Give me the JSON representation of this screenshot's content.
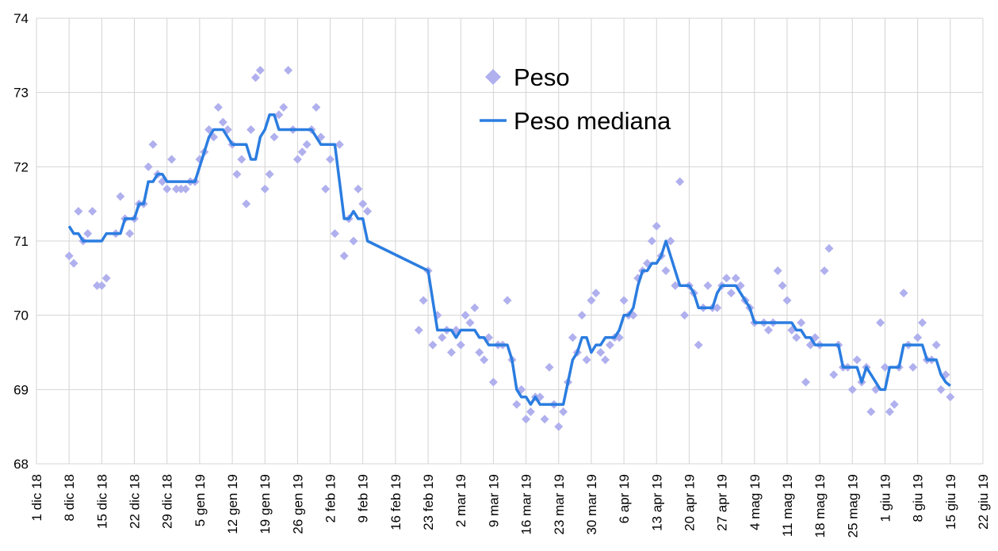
{
  "chart_data": {
    "type": "combo",
    "xlim": [
      0,
      203
    ],
    "ylim": [
      68,
      74
    ],
    "yticks": [
      68,
      69,
      70,
      71,
      72,
      73,
      74
    ],
    "xticks": [
      {
        "value": 0,
        "label": "1 dic 18"
      },
      {
        "value": 7,
        "label": "8 dic 18"
      },
      {
        "value": 14,
        "label": "15 dic 18"
      },
      {
        "value": 21,
        "label": "22 dic 18"
      },
      {
        "value": 28,
        "label": "29 dic 18"
      },
      {
        "value": 35,
        "label": "5 gen 19"
      },
      {
        "value": 42,
        "label": "12 gen 19"
      },
      {
        "value": 49,
        "label": "19 gen 19"
      },
      {
        "value": 56,
        "label": "26 gen 19"
      },
      {
        "value": 63,
        "label": "2 feb 19"
      },
      {
        "value": 70,
        "label": "9 feb 19"
      },
      {
        "value": 77,
        "label": "16 feb 19"
      },
      {
        "value": 84,
        "label": "23 feb 19"
      },
      {
        "value": 91,
        "label": "2 mar 19"
      },
      {
        "value": 98,
        "label": "9 mar 19"
      },
      {
        "value": 105,
        "label": "16 mar 19"
      },
      {
        "value": 112,
        "label": "23 mar 19"
      },
      {
        "value": 119,
        "label": "30 mar 19"
      },
      {
        "value": 126,
        "label": "6 apr 19"
      },
      {
        "value": 133,
        "label": "13 apr 19"
      },
      {
        "value": 140,
        "label": "20 apr 19"
      },
      {
        "value": 147,
        "label": "27 apr 19"
      },
      {
        "value": 154,
        "label": "4 mag 19"
      },
      {
        "value": 161,
        "label": "11 mag 19"
      },
      {
        "value": 168,
        "label": "18 mag 19"
      },
      {
        "value": 175,
        "label": "25 mag 19"
      },
      {
        "value": 182,
        "label": "1 giu 19"
      },
      {
        "value": 189,
        "label": "8 giu 19"
      },
      {
        "value": 196,
        "label": "15 giu 19"
      },
      {
        "value": 203,
        "label": "22 giu 19"
      }
    ],
    "grid": true,
    "legend": "top-center",
    "series": [
      {
        "name": "Peso",
        "type": "scatter",
        "color": "#b0b0ee",
        "x": [
          7,
          8,
          9,
          10,
          11,
          12,
          13,
          14,
          15,
          17,
          18,
          19,
          20,
          21,
          22,
          23,
          24,
          25,
          26,
          27,
          28,
          29,
          30,
          31,
          32,
          33,
          34,
          35,
          36,
          37,
          38,
          39,
          40,
          41,
          42,
          43,
          44,
          45,
          46,
          47,
          48,
          49,
          50,
          51,
          52,
          53,
          54,
          55,
          56,
          57,
          58,
          59,
          60,
          61,
          62,
          63,
          64,
          65,
          66,
          67,
          68,
          69,
          70,
          71,
          82,
          83,
          84,
          85,
          86,
          87,
          88,
          89,
          90,
          91,
          92,
          93,
          94,
          95,
          96,
          97,
          98,
          99,
          100,
          101,
          102,
          103,
          104,
          105,
          106,
          107,
          108,
          109,
          110,
          111,
          112,
          113,
          114,
          115,
          116,
          117,
          118,
          119,
          120,
          121,
          122,
          123,
          124,
          125,
          126,
          127,
          128,
          129,
          130,
          131,
          132,
          133,
          134,
          135,
          136,
          137,
          138,
          139,
          140,
          141,
          142,
          143,
          144,
          145,
          146,
          147,
          148,
          149,
          150,
          151,
          152,
          153,
          154,
          156,
          157,
          158,
          159,
          160,
          161,
          162,
          163,
          164,
          165,
          166,
          167,
          168,
          169,
          170,
          171,
          172,
          173,
          174,
          175,
          176,
          177,
          178,
          179,
          180,
          181,
          182,
          183,
          184,
          185,
          186,
          187,
          188,
          189,
          190,
          191,
          192,
          193,
          194,
          195,
          196
        ],
        "values": [
          70.8,
          70.7,
          71.4,
          71.0,
          71.1,
          71.4,
          70.4,
          70.4,
          70.5,
          71.1,
          71.6,
          71.3,
          71.1,
          71.3,
          71.5,
          71.5,
          72.0,
          72.3,
          71.9,
          71.8,
          71.7,
          72.1,
          71.7,
          71.7,
          71.7,
          71.8,
          71.8,
          72.1,
          72.2,
          72.5,
          72.4,
          72.8,
          72.6,
          72.5,
          72.3,
          71.9,
          72.1,
          71.5,
          72.5,
          73.2,
          73.3,
          71.7,
          71.9,
          72.4,
          72.7,
          72.8,
          73.3,
          72.5,
          72.1,
          72.2,
          72.3,
          72.5,
          72.8,
          72.4,
          71.7,
          72.1,
          71.1,
          72.3,
          70.8,
          71.3,
          71.0,
          71.7,
          71.5,
          71.4,
          69.8,
          70.2,
          70.6,
          69.6,
          70.0,
          69.7,
          69.8,
          69.5,
          69.8,
          69.6,
          70.0,
          69.9,
          70.1,
          69.5,
          69.4,
          69.7,
          69.1,
          69.6,
          69.6,
          70.2,
          69.4,
          68.8,
          69.0,
          68.6,
          68.7,
          68.9,
          68.9,
          68.6,
          69.3,
          68.8,
          68.5,
          68.7,
          69.1,
          69.7,
          69.5,
          70.0,
          69.4,
          70.2,
          70.3,
          69.5,
          69.4,
          69.6,
          69.7,
          69.7,
          70.2,
          70.0,
          70.0,
          70.5,
          70.6,
          70.7,
          71.0,
          71.2,
          70.8,
          70.6,
          71.0,
          70.4,
          71.8,
          70.0,
          70.4,
          70.3,
          69.6,
          70.1,
          70.4,
          70.1,
          70.1,
          70.4,
          70.5,
          70.3,
          70.5,
          70.4,
          70.2,
          70.1,
          69.9,
          69.9,
          69.8,
          69.9,
          70.6,
          70.4,
          70.2,
          69.8,
          69.7,
          69.9,
          69.1,
          69.6,
          69.7,
          69.6,
          70.6,
          70.9,
          69.2,
          69.6,
          69.3,
          69.3,
          69.0,
          69.4,
          69.1,
          69.3,
          68.7,
          69.0,
          69.9,
          69.3,
          68.7,
          68.8,
          69.3,
          70.3,
          69.6,
          69.3,
          69.7,
          69.9,
          69.4,
          69.4,
          69.6,
          69.0,
          69.2,
          68.9
        ]
      },
      {
        "name": "Peso mediana",
        "type": "line",
        "color": "#2b7de0",
        "x": [
          7,
          8,
          9,
          10,
          11,
          12,
          13,
          14,
          15,
          17,
          18,
          19,
          21,
          22,
          23,
          24,
          25,
          26,
          27,
          28,
          33,
          34,
          35,
          36,
          37,
          38,
          40,
          41,
          42,
          45,
          46,
          47,
          48,
          49,
          50,
          51,
          52,
          55,
          59,
          60,
          61,
          64,
          65,
          66,
          67,
          68,
          69,
          70,
          71,
          84,
          85,
          86,
          89,
          90,
          91,
          94,
          95,
          96,
          97,
          100,
          101,
          102,
          103,
          104,
          105,
          106,
          107,
          108,
          113,
          114,
          115,
          116,
          117,
          118,
          119,
          120,
          121,
          122,
          124,
          125,
          126,
          127,
          128,
          129,
          130,
          131,
          132,
          133,
          134,
          135,
          136,
          137,
          138,
          140,
          141,
          142,
          145,
          146,
          147,
          150,
          151,
          152,
          153,
          154,
          161,
          162,
          163,
          164,
          165,
          166,
          167,
          172,
          173,
          176,
          177,
          178,
          179,
          180,
          181,
          182,
          183,
          185,
          186,
          188,
          189,
          190,
          191,
          192,
          193,
          194,
          195,
          196
        ],
        "values": [
          71.2,
          71.1,
          71.1,
          71.0,
          71.0,
          71.0,
          71.0,
          71.0,
          71.1,
          71.1,
          71.1,
          71.3,
          71.3,
          71.5,
          71.5,
          71.8,
          71.8,
          71.9,
          71.9,
          71.8,
          71.8,
          71.8,
          72.0,
          72.2,
          72.4,
          72.5,
          72.5,
          72.4,
          72.3,
          72.3,
          72.1,
          72.1,
          72.4,
          72.5,
          72.7,
          72.7,
          72.5,
          72.5,
          72.5,
          72.4,
          72.3,
          72.3,
          71.8,
          71.3,
          71.3,
          71.4,
          71.3,
          71.3,
          71.0,
          70.6,
          70.2,
          69.8,
          69.8,
          69.7,
          69.8,
          69.8,
          69.7,
          69.7,
          69.6,
          69.6,
          69.6,
          69.4,
          69.0,
          68.9,
          68.9,
          68.8,
          68.9,
          68.8,
          68.8,
          69.1,
          69.4,
          69.5,
          69.7,
          69.7,
          69.5,
          69.6,
          69.6,
          69.7,
          69.7,
          69.8,
          70.0,
          70.0,
          70.1,
          70.4,
          70.6,
          70.6,
          70.7,
          70.7,
          70.8,
          71.0,
          70.8,
          70.6,
          70.4,
          70.4,
          70.3,
          70.1,
          70.1,
          70.3,
          70.4,
          70.4,
          70.3,
          70.2,
          70.1,
          69.9,
          69.9,
          69.9,
          69.8,
          69.8,
          69.7,
          69.7,
          69.6,
          69.6,
          69.3,
          69.3,
          69.1,
          69.3,
          69.2,
          69.1,
          69.0,
          69.0,
          69.3,
          69.3,
          69.6,
          69.6,
          69.6,
          69.6,
          69.4,
          69.4,
          69.4,
          69.2,
          69.1,
          69.05
        ]
      }
    ]
  }
}
